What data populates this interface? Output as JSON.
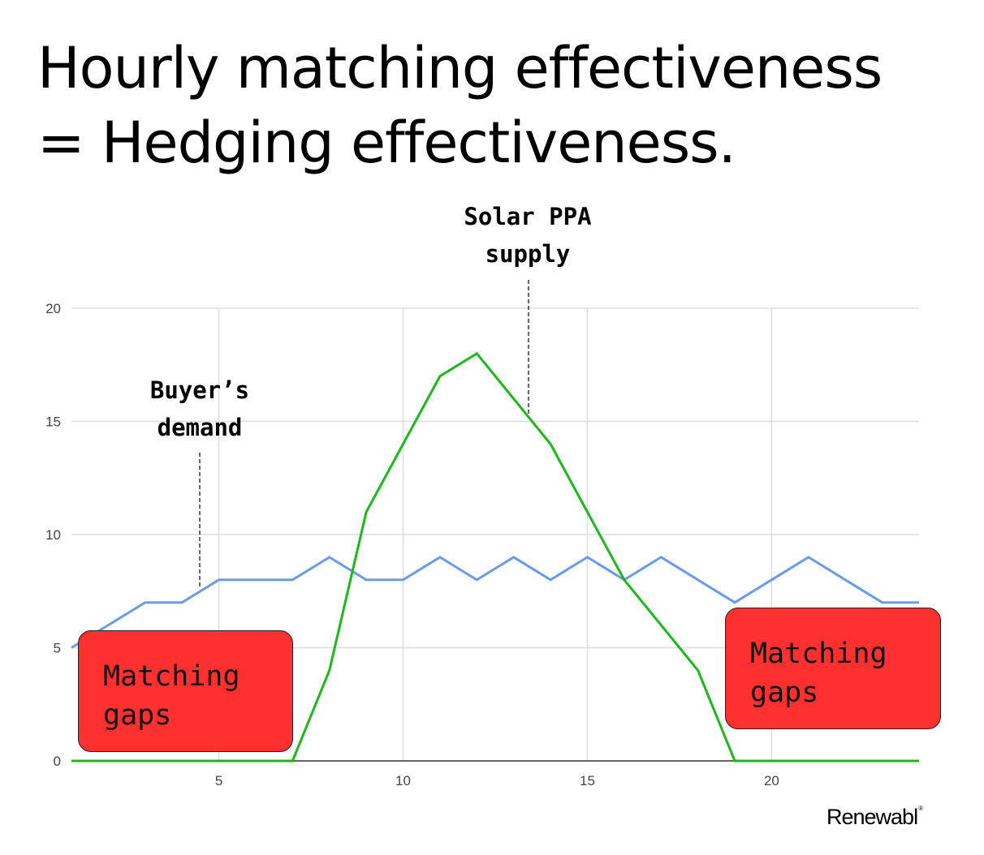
{
  "title_lines": [
    "Hourly matching effectiveness",
    "= Hedging effectiveness."
  ],
  "brand": "Renewabl",
  "brand_mark": "®",
  "annotations": {
    "solar": [
      "Solar PPA",
      "supply"
    ],
    "demand": [
      "Buyer’s",
      "demand"
    ]
  },
  "gap_label": "Matching\ngaps",
  "colors": {
    "demand": "#6a9be8",
    "supply": "#1cb81c",
    "grid": "#dddddd",
    "gap": "#ff3030"
  },
  "chart_data": {
    "type": "line",
    "x": [
      1,
      2,
      3,
      4,
      5,
      6,
      7,
      8,
      9,
      10,
      11,
      12,
      13,
      14,
      15,
      16,
      17,
      18,
      19,
      20,
      21,
      22,
      23,
      24
    ],
    "series": [
      {
        "values": [
          5,
          6,
          7,
          7,
          8,
          8,
          8,
          9,
          8,
          8,
          9,
          8,
          9,
          8,
          9,
          8,
          9,
          8,
          7,
          8,
          9,
          8,
          7,
          7
        ]
      },
      {
        "values": [
          0,
          0,
          0,
          0,
          0,
          0,
          0,
          4,
          11,
          14,
          17,
          18,
          16,
          14,
          11,
          8,
          6,
          4,
          0,
          0,
          0,
          0,
          0,
          0
        ]
      }
    ],
    "xlim": [
      1,
      24
    ],
    "ylim": [
      0,
      20
    ],
    "xticks": [
      5,
      10,
      15,
      20
    ],
    "yticks": [
      0,
      5,
      10,
      15,
      20
    ],
    "grid": true,
    "legend": "none"
  }
}
